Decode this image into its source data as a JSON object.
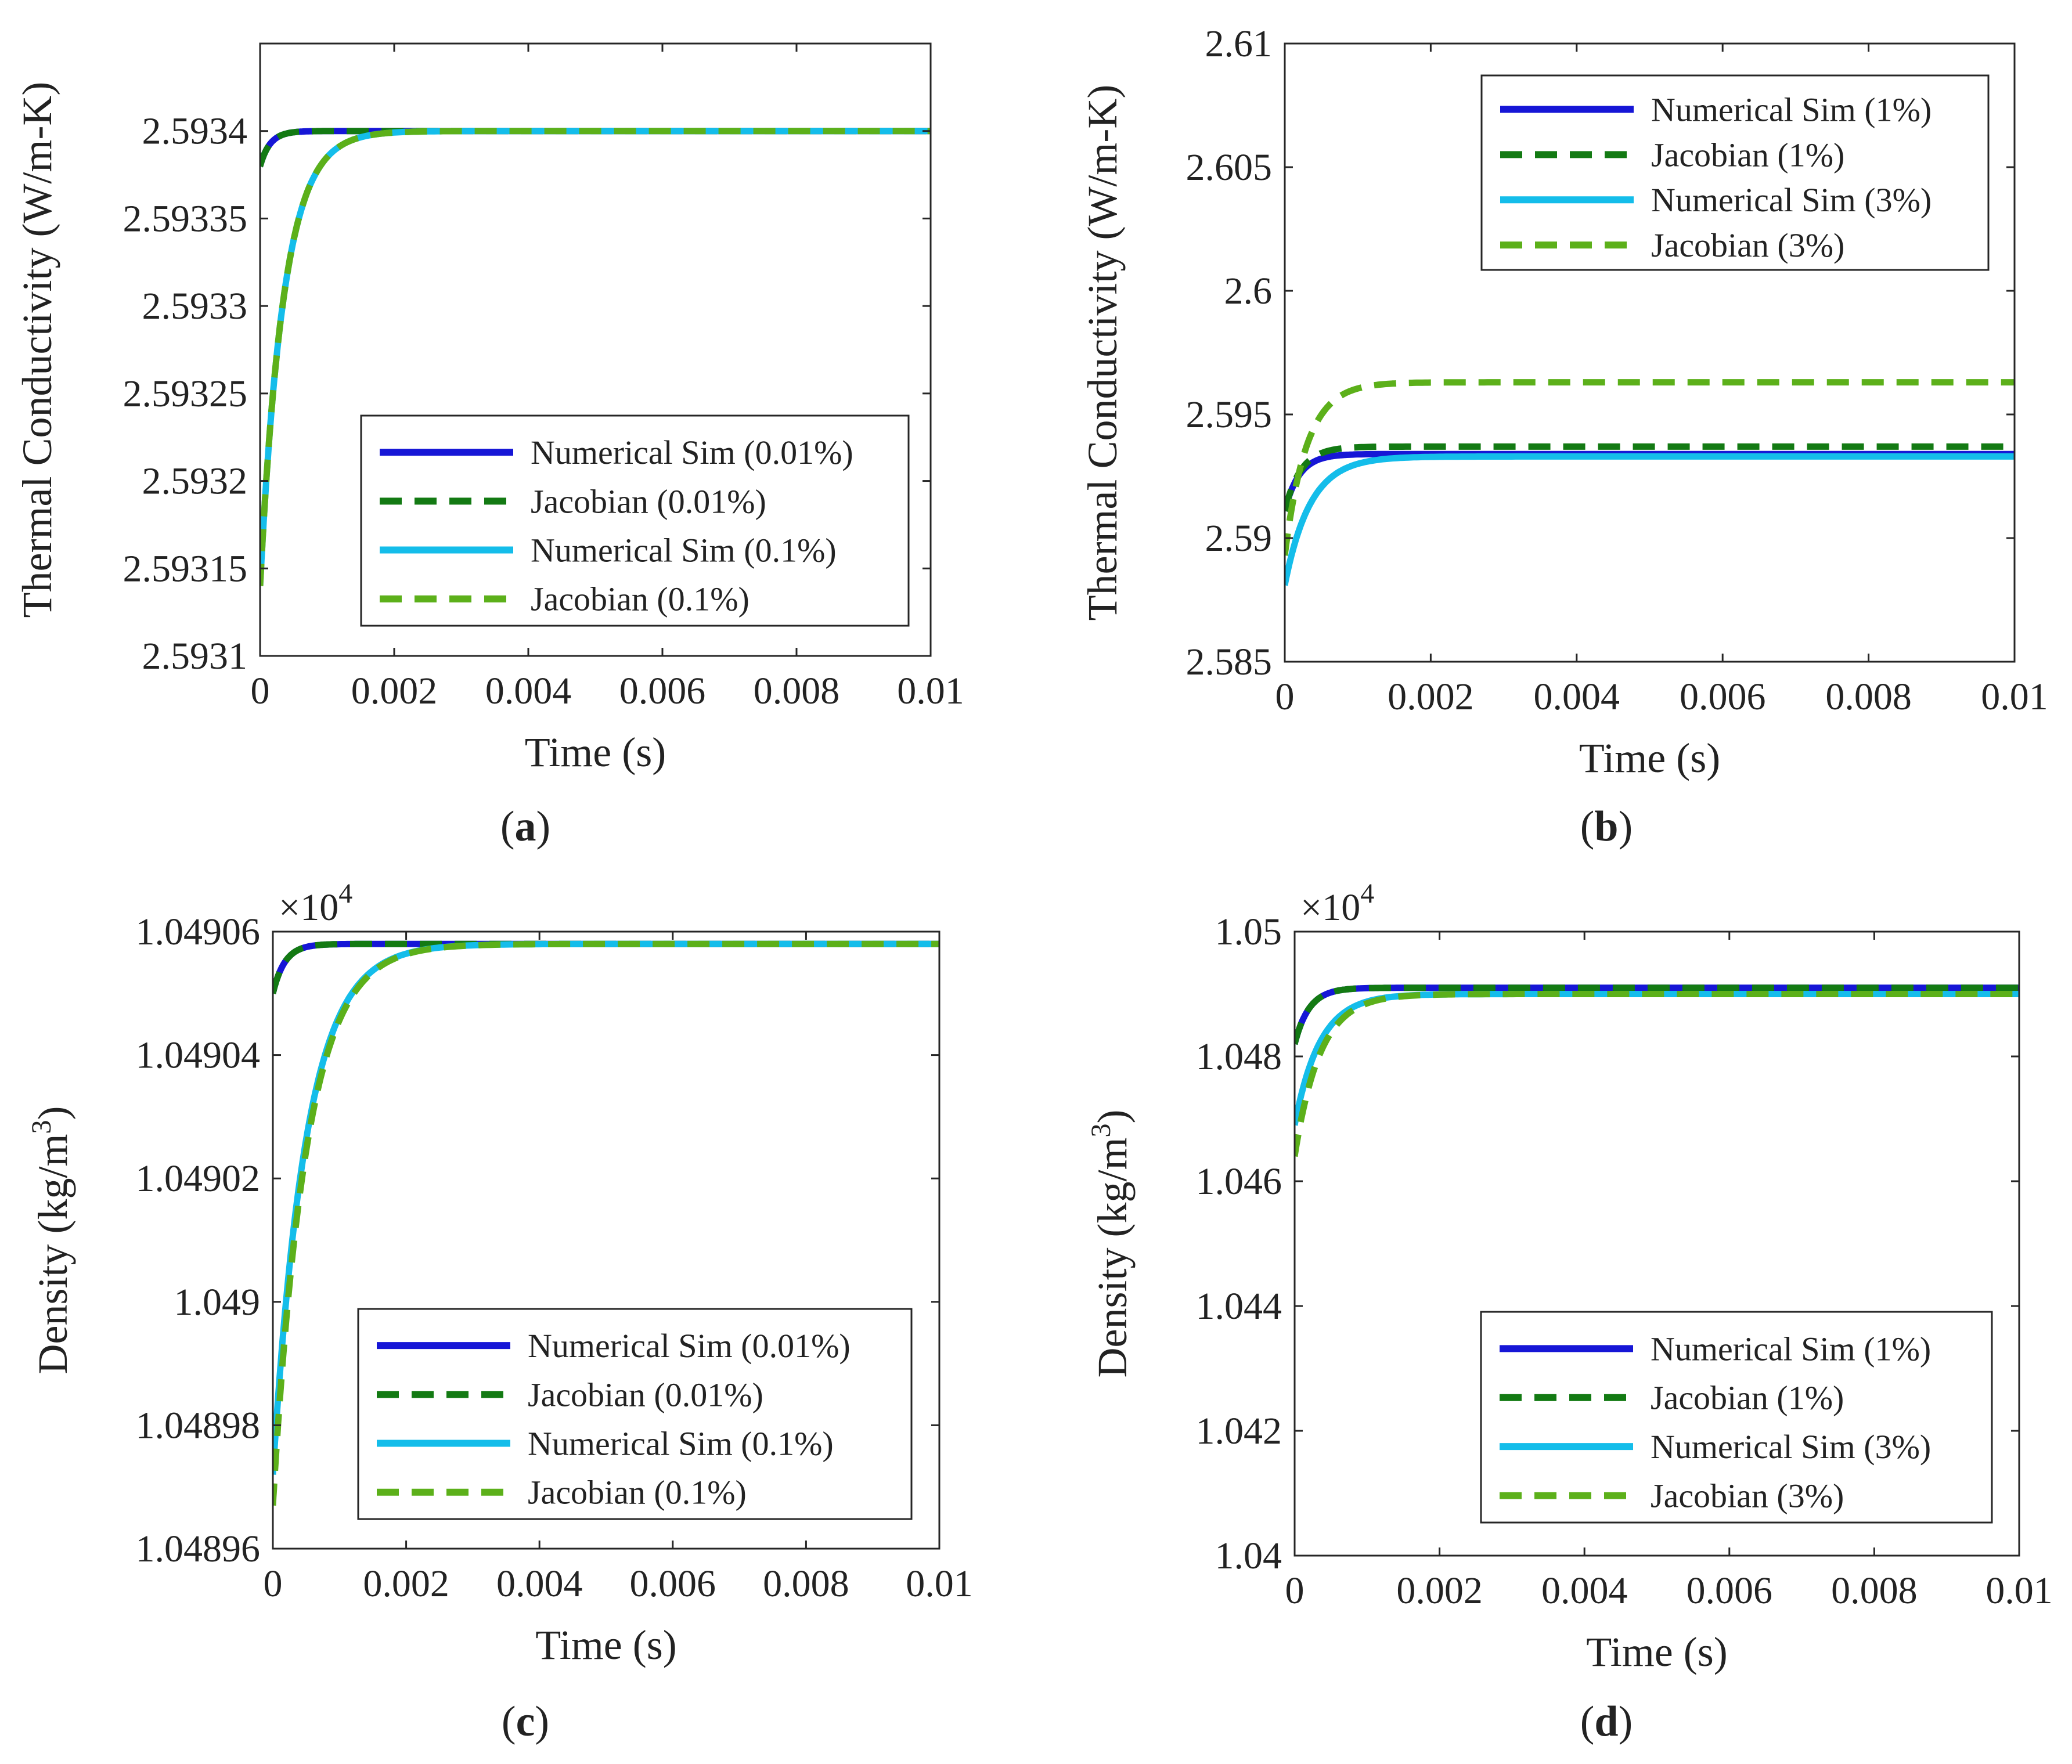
{
  "figure": {
    "panels": [
      "(a)",
      "(b)",
      "(c)",
      "(d)"
    ]
  },
  "colors": {
    "numerical_low": "#1616d6",
    "jacobian_low": "#137a13",
    "numerical_high": "#14bdea",
    "jacobian_high": "#5cb01a"
  },
  "chart_data": [
    {
      "id": "a",
      "type": "line",
      "panel_label": "a",
      "xlabel": "Time (s)",
      "ylabel": "Thermal Conductivity (W/m-K)",
      "multiplier": "",
      "xlim": [
        0,
        0.01
      ],
      "ylim": [
        2.5931,
        2.59345
      ],
      "x_ticks": [
        "0",
        "0.002",
        "0.004",
        "0.006",
        "0.008",
        "0.01"
      ],
      "y_ticks": [
        {
          "v": 2.5931,
          "label": "2.5931"
        },
        {
          "v": 2.59315,
          "label": "2.59315"
        },
        {
          "v": 2.5932,
          "label": "2.5932"
        },
        {
          "v": 2.59325,
          "label": "2.59325"
        },
        {
          "v": 2.5933,
          "label": "2.5933"
        },
        {
          "v": 2.59335,
          "label": "2.59335"
        },
        {
          "v": 2.5934,
          "label": "2.5934"
        }
      ],
      "legend": {
        "position": "lower-right"
      },
      "series": [
        {
          "name": "Numerical Sim (0.01%)",
          "style": "solid",
          "color_key": "numerical_low",
          "start": 2.59338,
          "end": 2.5934,
          "tau": 0.00015
        },
        {
          "name": "Jacobian (0.01%)",
          "style": "dashed",
          "color_key": "jacobian_low",
          "start": 2.59338,
          "end": 2.5934,
          "tau": 0.00015
        },
        {
          "name": "Numerical Sim (0.1%)",
          "style": "solid",
          "color_key": "numerical_high",
          "start": 2.59314,
          "end": 2.5934,
          "tau": 0.00035
        },
        {
          "name": "Jacobian (0.1%)",
          "style": "dashed",
          "color_key": "jacobian_high",
          "start": 2.59314,
          "end": 2.5934,
          "tau": 0.00035
        }
      ]
    },
    {
      "id": "b",
      "type": "line",
      "panel_label": "b",
      "xlabel": "Time (s)",
      "ylabel": "Thermal Conductivity (W/m-K)",
      "multiplier": "",
      "xlim": [
        0,
        0.01
      ],
      "ylim": [
        2.585,
        2.61
      ],
      "x_ticks": [
        "0",
        "0.002",
        "0.004",
        "0.006",
        "0.008",
        "0.01"
      ],
      "y_ticks": [
        {
          "v": 2.585,
          "label": "2.585"
        },
        {
          "v": 2.59,
          "label": "2.59"
        },
        {
          "v": 2.595,
          "label": "2.595"
        },
        {
          "v": 2.6,
          "label": "2.6"
        },
        {
          "v": 2.605,
          "label": "2.605"
        },
        {
          "v": 2.61,
          "label": "2.61"
        }
      ],
      "legend": {
        "position": "upper-right"
      },
      "series": [
        {
          "name": "Numerical Sim (1%)",
          "style": "solid",
          "color_key": "numerical_low",
          "start": 2.5911,
          "end": 2.5934,
          "tau": 0.0002
        },
        {
          "name": "Jacobian (1%)",
          "style": "dashed",
          "color_key": "jacobian_low",
          "start": 2.5911,
          "end": 2.5937,
          "tau": 0.00022
        },
        {
          "name": "Numerical Sim (3%)",
          "style": "solid",
          "color_key": "numerical_high",
          "start": 2.5881,
          "end": 2.5933,
          "tau": 0.00035
        },
        {
          "name": "Jacobian (3%)",
          "style": "dashed",
          "color_key": "jacobian_high",
          "start": 2.5893,
          "end": 2.5963,
          "tau": 0.0003
        }
      ]
    },
    {
      "id": "c",
      "type": "line",
      "panel_label": "c",
      "xlabel": "Time (s)",
      "ylabel": "Density (kg/m3)",
      "ylabel_main": "Density (kg/m",
      "ylabel_sup": "3",
      "ylabel_tail": ")",
      "multiplier": "×10",
      "multiplier_exp": "4",
      "xlim": [
        0,
        0.01
      ],
      "ylim": [
        1.04896,
        1.04906
      ],
      "x_ticks": [
        "0",
        "0.002",
        "0.004",
        "0.006",
        "0.008",
        "0.01"
      ],
      "y_ticks": [
        {
          "v": 1.04896,
          "label": "1.04896"
        },
        {
          "v": 1.04898,
          "label": "1.04898"
        },
        {
          "v": 1.049,
          "label": "1.049"
        },
        {
          "v": 1.04902,
          "label": "1.04902"
        },
        {
          "v": 1.04904,
          "label": "1.04904"
        },
        {
          "v": 1.04906,
          "label": "1.04906"
        }
      ],
      "legend": {
        "position": "lower-right"
      },
      "series": [
        {
          "name": "Numerical Sim (0.01%)",
          "style": "solid",
          "color_key": "numerical_low",
          "start": 1.04905,
          "end": 1.049058,
          "tau": 0.00018
        },
        {
          "name": "Jacobian (0.01%)",
          "style": "dashed",
          "color_key": "jacobian_low",
          "start": 1.04905,
          "end": 1.049058,
          "tau": 0.00018
        },
        {
          "name": "Numerical Sim (0.1%)",
          "style": "solid",
          "color_key": "numerical_high",
          "start": 1.048972,
          "end": 1.049058,
          "tau": 0.0005
        },
        {
          "name": "Jacobian (0.1%)",
          "style": "dashed",
          "color_key": "jacobian_high",
          "start": 1.048967,
          "end": 1.049058,
          "tau": 0.0005
        }
      ]
    },
    {
      "id": "d",
      "type": "line",
      "panel_label": "d",
      "xlabel": "Time (s)",
      "ylabel": "Density (kg/m3)",
      "ylabel_main": "Density (kg/m",
      "ylabel_sup": "3",
      "ylabel_tail": ")",
      "multiplier": "×10",
      "multiplier_exp": "4",
      "xlim": [
        0,
        0.01
      ],
      "ylim": [
        1.04,
        1.05
      ],
      "x_ticks": [
        "0",
        "0.002",
        "0.004",
        "0.006",
        "0.008",
        "0.01"
      ],
      "y_ticks": [
        {
          "v": 1.04,
          "label": "1.04"
        },
        {
          "v": 1.042,
          "label": "1.042"
        },
        {
          "v": 1.044,
          "label": "1.044"
        },
        {
          "v": 1.046,
          "label": "1.046"
        },
        {
          "v": 1.048,
          "label": "1.048"
        },
        {
          "v": 1.05,
          "label": "1.05"
        }
      ],
      "legend": {
        "position": "lower-right"
      },
      "series": [
        {
          "name": "Numerical Sim (1%)",
          "style": "solid",
          "color_key": "numerical_low",
          "start": 1.0482,
          "end": 1.0491,
          "tau": 0.0002
        },
        {
          "name": "Jacobian (1%)",
          "style": "dashed",
          "color_key": "jacobian_low",
          "start": 1.0482,
          "end": 1.0491,
          "tau": 0.0002
        },
        {
          "name": "Numerical Sim (3%)",
          "style": "solid",
          "color_key": "numerical_high",
          "start": 1.0469,
          "end": 1.049,
          "tau": 0.00035
        },
        {
          "name": "Jacobian (3%)",
          "style": "dashed",
          "color_key": "jacobian_high",
          "start": 1.0464,
          "end": 1.049,
          "tau": 0.00035
        }
      ]
    }
  ]
}
